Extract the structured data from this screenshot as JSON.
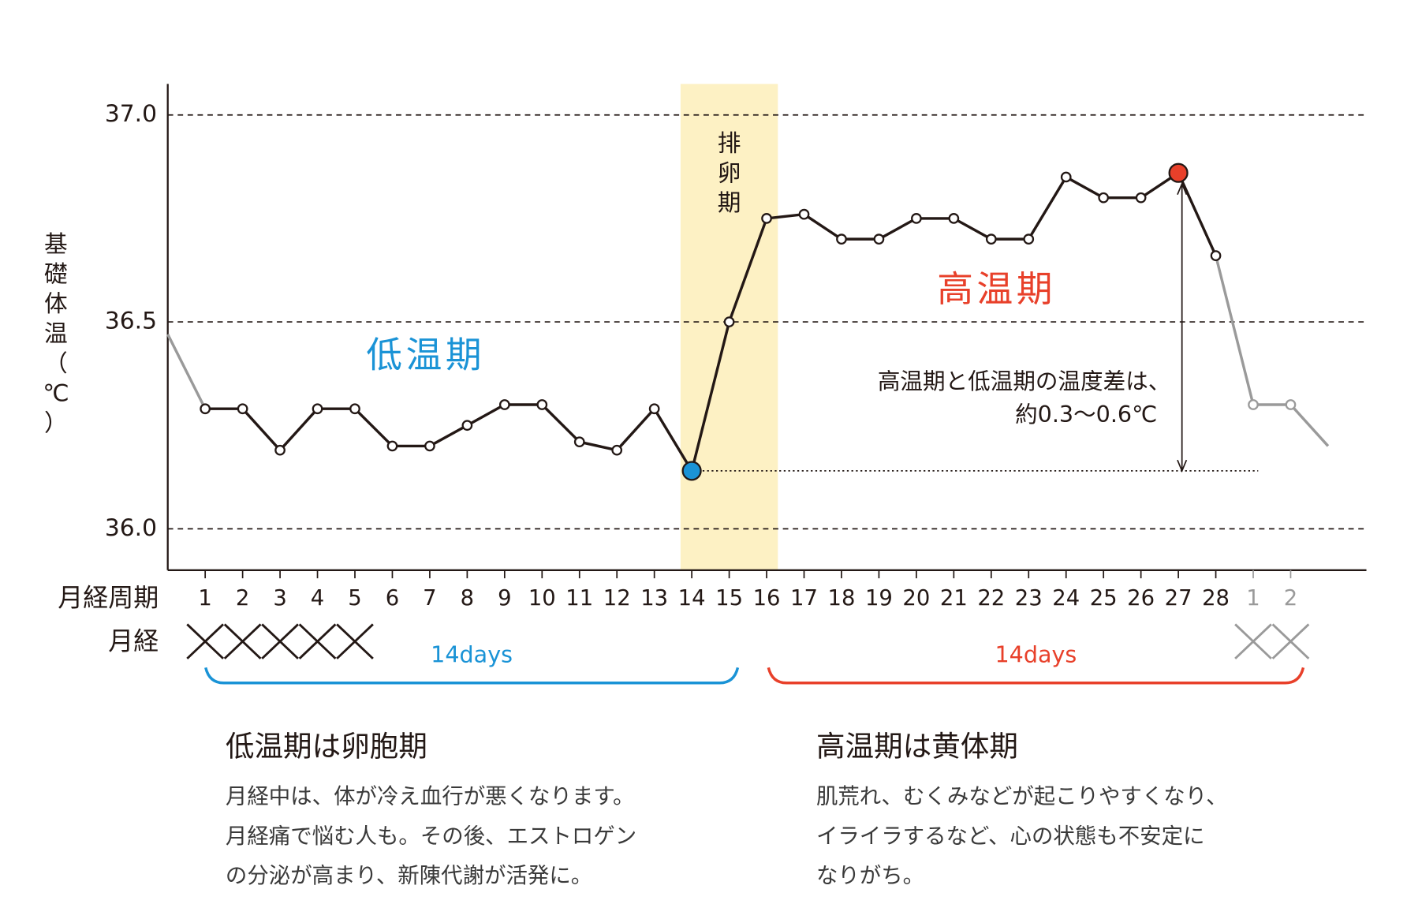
{
  "chart_data": {
    "type": "line",
    "y_label": "基礎体温（℃）",
    "row_labels": [
      "月経周期",
      "月経"
    ],
    "categories": [
      null,
      "1",
      "2",
      "3",
      "4",
      "5",
      "6",
      "7",
      "8",
      "9",
      "10",
      "11",
      "12",
      "13",
      "14",
      "15",
      "16",
      "17",
      "18",
      "19",
      "20",
      "21",
      "22",
      "23",
      "24",
      "25",
      "26",
      "27",
      "28",
      "1",
      "2",
      null
    ],
    "series": [
      {
        "color": "#231815",
        "values": [
          null,
          36.29,
          36.29,
          36.19,
          36.29,
          36.29,
          36.2,
          36.2,
          36.25,
          36.3,
          36.3,
          36.21,
          36.19,
          36.29,
          36.14,
          36.5,
          36.75,
          36.76,
          36.7,
          36.7,
          36.75,
          36.75,
          36.7,
          36.7,
          36.85,
          36.8,
          36.8,
          36.86,
          36.66,
          null,
          null,
          null
        ]
      },
      {
        "color": "#9a9a9a",
        "values": [
          36.47,
          36.29,
          null,
          null,
          null,
          null,
          null,
          null,
          null,
          null,
          null,
          null,
          null,
          null,
          null,
          null,
          null,
          null,
          null,
          null,
          null,
          null,
          null,
          null,
          null,
          null,
          null,
          null,
          36.66,
          36.3,
          36.3,
          36.2
        ]
      }
    ],
    "highlights": [
      {
        "index": 14,
        "color": "#1a93d6"
      },
      {
        "index": 27,
        "color": "#e8402a"
      }
    ],
    "ylim": [
      35.9,
      37.075
    ],
    "yticks": [
      {
        "value": 36.0,
        "label": "36.0"
      },
      {
        "value": 36.5,
        "label": "36.5"
      },
      {
        "value": 37.0,
        "label": "37.0"
      }
    ],
    "grid": true,
    "band_label": "排卵期",
    "annotations": [
      "低温期",
      "高温期",
      "高温期と低温期の温度差は、",
      "約0.3〜0.6℃"
    ],
    "phase_labels": [
      "14days",
      "14days"
    ]
  },
  "notes": [
    {
      "title": "低温期は卵胞期",
      "lines": [
        "月経中は、体が冷え血行が悪くなります。",
        "月経痛で悩む人も。その後、エストロゲン",
        "の分泌が高まり、新陳代謝が活発に。"
      ]
    },
    {
      "title": "高温期は黄体期",
      "lines": [
        "肌荒れ、むくみなどが起こりやすくなり、",
        "イライラするなど、心の状態も不安定に",
        "なりがち。"
      ]
    }
  ]
}
